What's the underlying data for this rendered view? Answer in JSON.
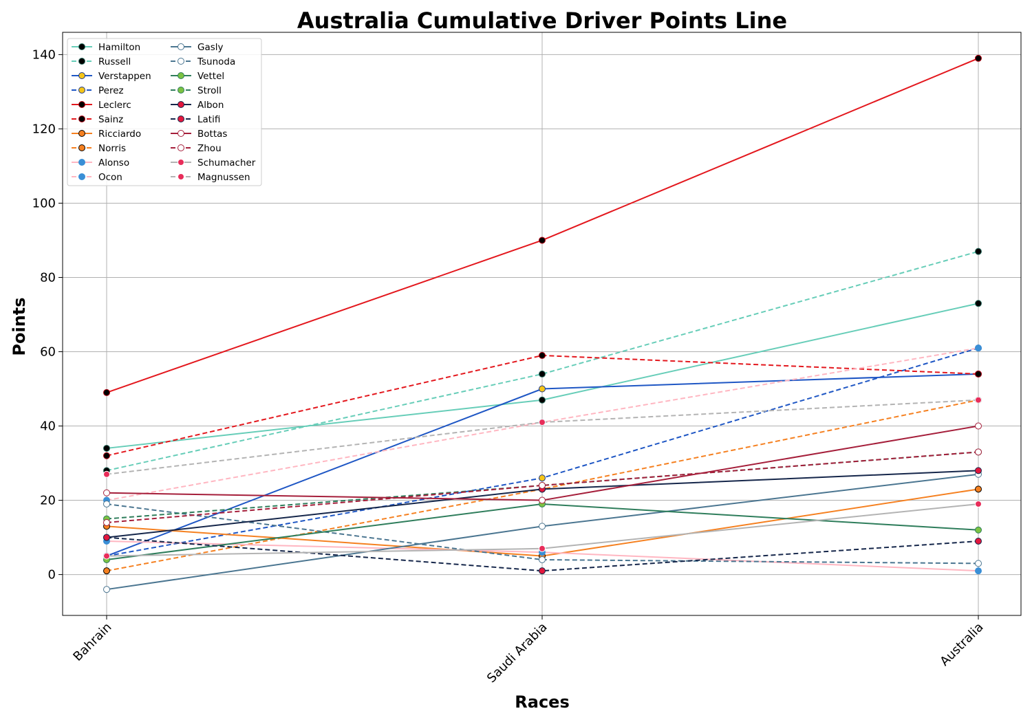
{
  "chart_data": {
    "type": "line",
    "title": "Australia Cumulative Driver Points Line",
    "xlabel": "Races",
    "ylabel": "Points",
    "categories": [
      "Bahrain",
      "Saudi Arabia",
      "Australia"
    ],
    "ylim": [
      -11,
      146
    ],
    "yticks": [
      0,
      20,
      40,
      60,
      80,
      100,
      120,
      140
    ],
    "grid": true,
    "legend_position": "top-left",
    "series": [
      {
        "name": "Hamilton",
        "values": [
          34,
          47,
          73
        ],
        "color": "#66cdb8",
        "dash": false,
        "marker_fill": "#000000",
        "marker_edge": "#2a6b5e"
      },
      {
        "name": "Russell",
        "values": [
          28,
          54,
          87
        ],
        "color": "#66cdb8",
        "dash": true,
        "marker_fill": "#000000",
        "marker_edge": "#2a6b5e"
      },
      {
        "name": "Verstappen",
        "values": [
          5,
          50,
          54
        ],
        "color": "#1e56c4",
        "dash": false,
        "marker_fill": "#f5c518",
        "marker_edge": "#1e3a8a"
      },
      {
        "name": "Perez",
        "values": [
          5,
          26,
          61
        ],
        "color": "#1e56c4",
        "dash": true,
        "marker_fill": "#f5c518",
        "marker_edge": "#1e3a8a"
      },
      {
        "name": "Leclerc",
        "values": [
          49,
          90,
          139
        ],
        "color": "#e3171d",
        "dash": false,
        "marker_fill": "#000000",
        "marker_edge": "#b00010"
      },
      {
        "name": "Sainz",
        "values": [
          32,
          59,
          54
        ],
        "color": "#e3171d",
        "dash": true,
        "marker_fill": "#000000",
        "marker_edge": "#b00010"
      },
      {
        "name": "Ricciardo",
        "values": [
          13,
          5,
          23
        ],
        "color": "#f58020",
        "dash": false,
        "marker_fill": "#f58020",
        "marker_edge": "#000000"
      },
      {
        "name": "Norris",
        "values": [
          1,
          23,
          47
        ],
        "color": "#f58020",
        "dash": true,
        "marker_fill": "#f58020",
        "marker_edge": "#000000"
      },
      {
        "name": "Alonso",
        "values": [
          9,
          6,
          1
        ],
        "color": "#ffb6c1",
        "dash": false,
        "marker_fill": "#3a8fd6",
        "marker_edge": "#3a8fd6"
      },
      {
        "name": "Ocon",
        "values": [
          20,
          41,
          61
        ],
        "color": "#ffb6c1",
        "dash": true,
        "marker_fill": "#3a8fd6",
        "marker_edge": "#3a8fd6"
      },
      {
        "name": "Gasly",
        "values": [
          -4,
          13,
          27
        ],
        "color": "#4a7590",
        "dash": false,
        "marker_fill": "#ffffff",
        "marker_edge": "#4a7590"
      },
      {
        "name": "Tsunoda",
        "values": [
          19,
          4,
          3
        ],
        "color": "#4a7590",
        "dash": true,
        "marker_fill": "#ffffff",
        "marker_edge": "#4a7590"
      },
      {
        "name": "Vettel",
        "values": [
          4,
          19,
          12
        ],
        "color": "#2e7d5b",
        "dash": false,
        "marker_fill": "#7cc242",
        "marker_edge": "#2e7d5b"
      },
      {
        "name": "Stroll",
        "values": [
          15,
          24,
          33
        ],
        "color": "#2e7d5b",
        "dash": true,
        "marker_fill": "#7cc242",
        "marker_edge": "#2e7d5b"
      },
      {
        "name": "Albon",
        "values": [
          10,
          23,
          28
        ],
        "color": "#15264a",
        "dash": false,
        "marker_fill": "#e3173d",
        "marker_edge": "#15264a"
      },
      {
        "name": "Latifi",
        "values": [
          10,
          1,
          9
        ],
        "color": "#15264a",
        "dash": true,
        "marker_fill": "#e3173d",
        "marker_edge": "#15264a"
      },
      {
        "name": "Bottas",
        "values": [
          22,
          20,
          40
        ],
        "color": "#a51e3a",
        "dash": false,
        "marker_fill": "#ffffff",
        "marker_edge": "#a51e3a"
      },
      {
        "name": "Zhou",
        "values": [
          14,
          24,
          33
        ],
        "color": "#a51e3a",
        "dash": true,
        "marker_fill": "#ffffff",
        "marker_edge": "#a51e3a"
      },
      {
        "name": "Schumacher",
        "values": [
          5,
          7,
          19
        ],
        "color": "#b3b3b3",
        "dash": false,
        "marker_fill": "#e82d5a",
        "marker_edge": "#ffffff"
      },
      {
        "name": "Magnussen",
        "values": [
          27,
          41,
          47
        ],
        "color": "#b3b3b3",
        "dash": true,
        "marker_fill": "#e82d5a",
        "marker_edge": "#ffffff"
      }
    ]
  }
}
